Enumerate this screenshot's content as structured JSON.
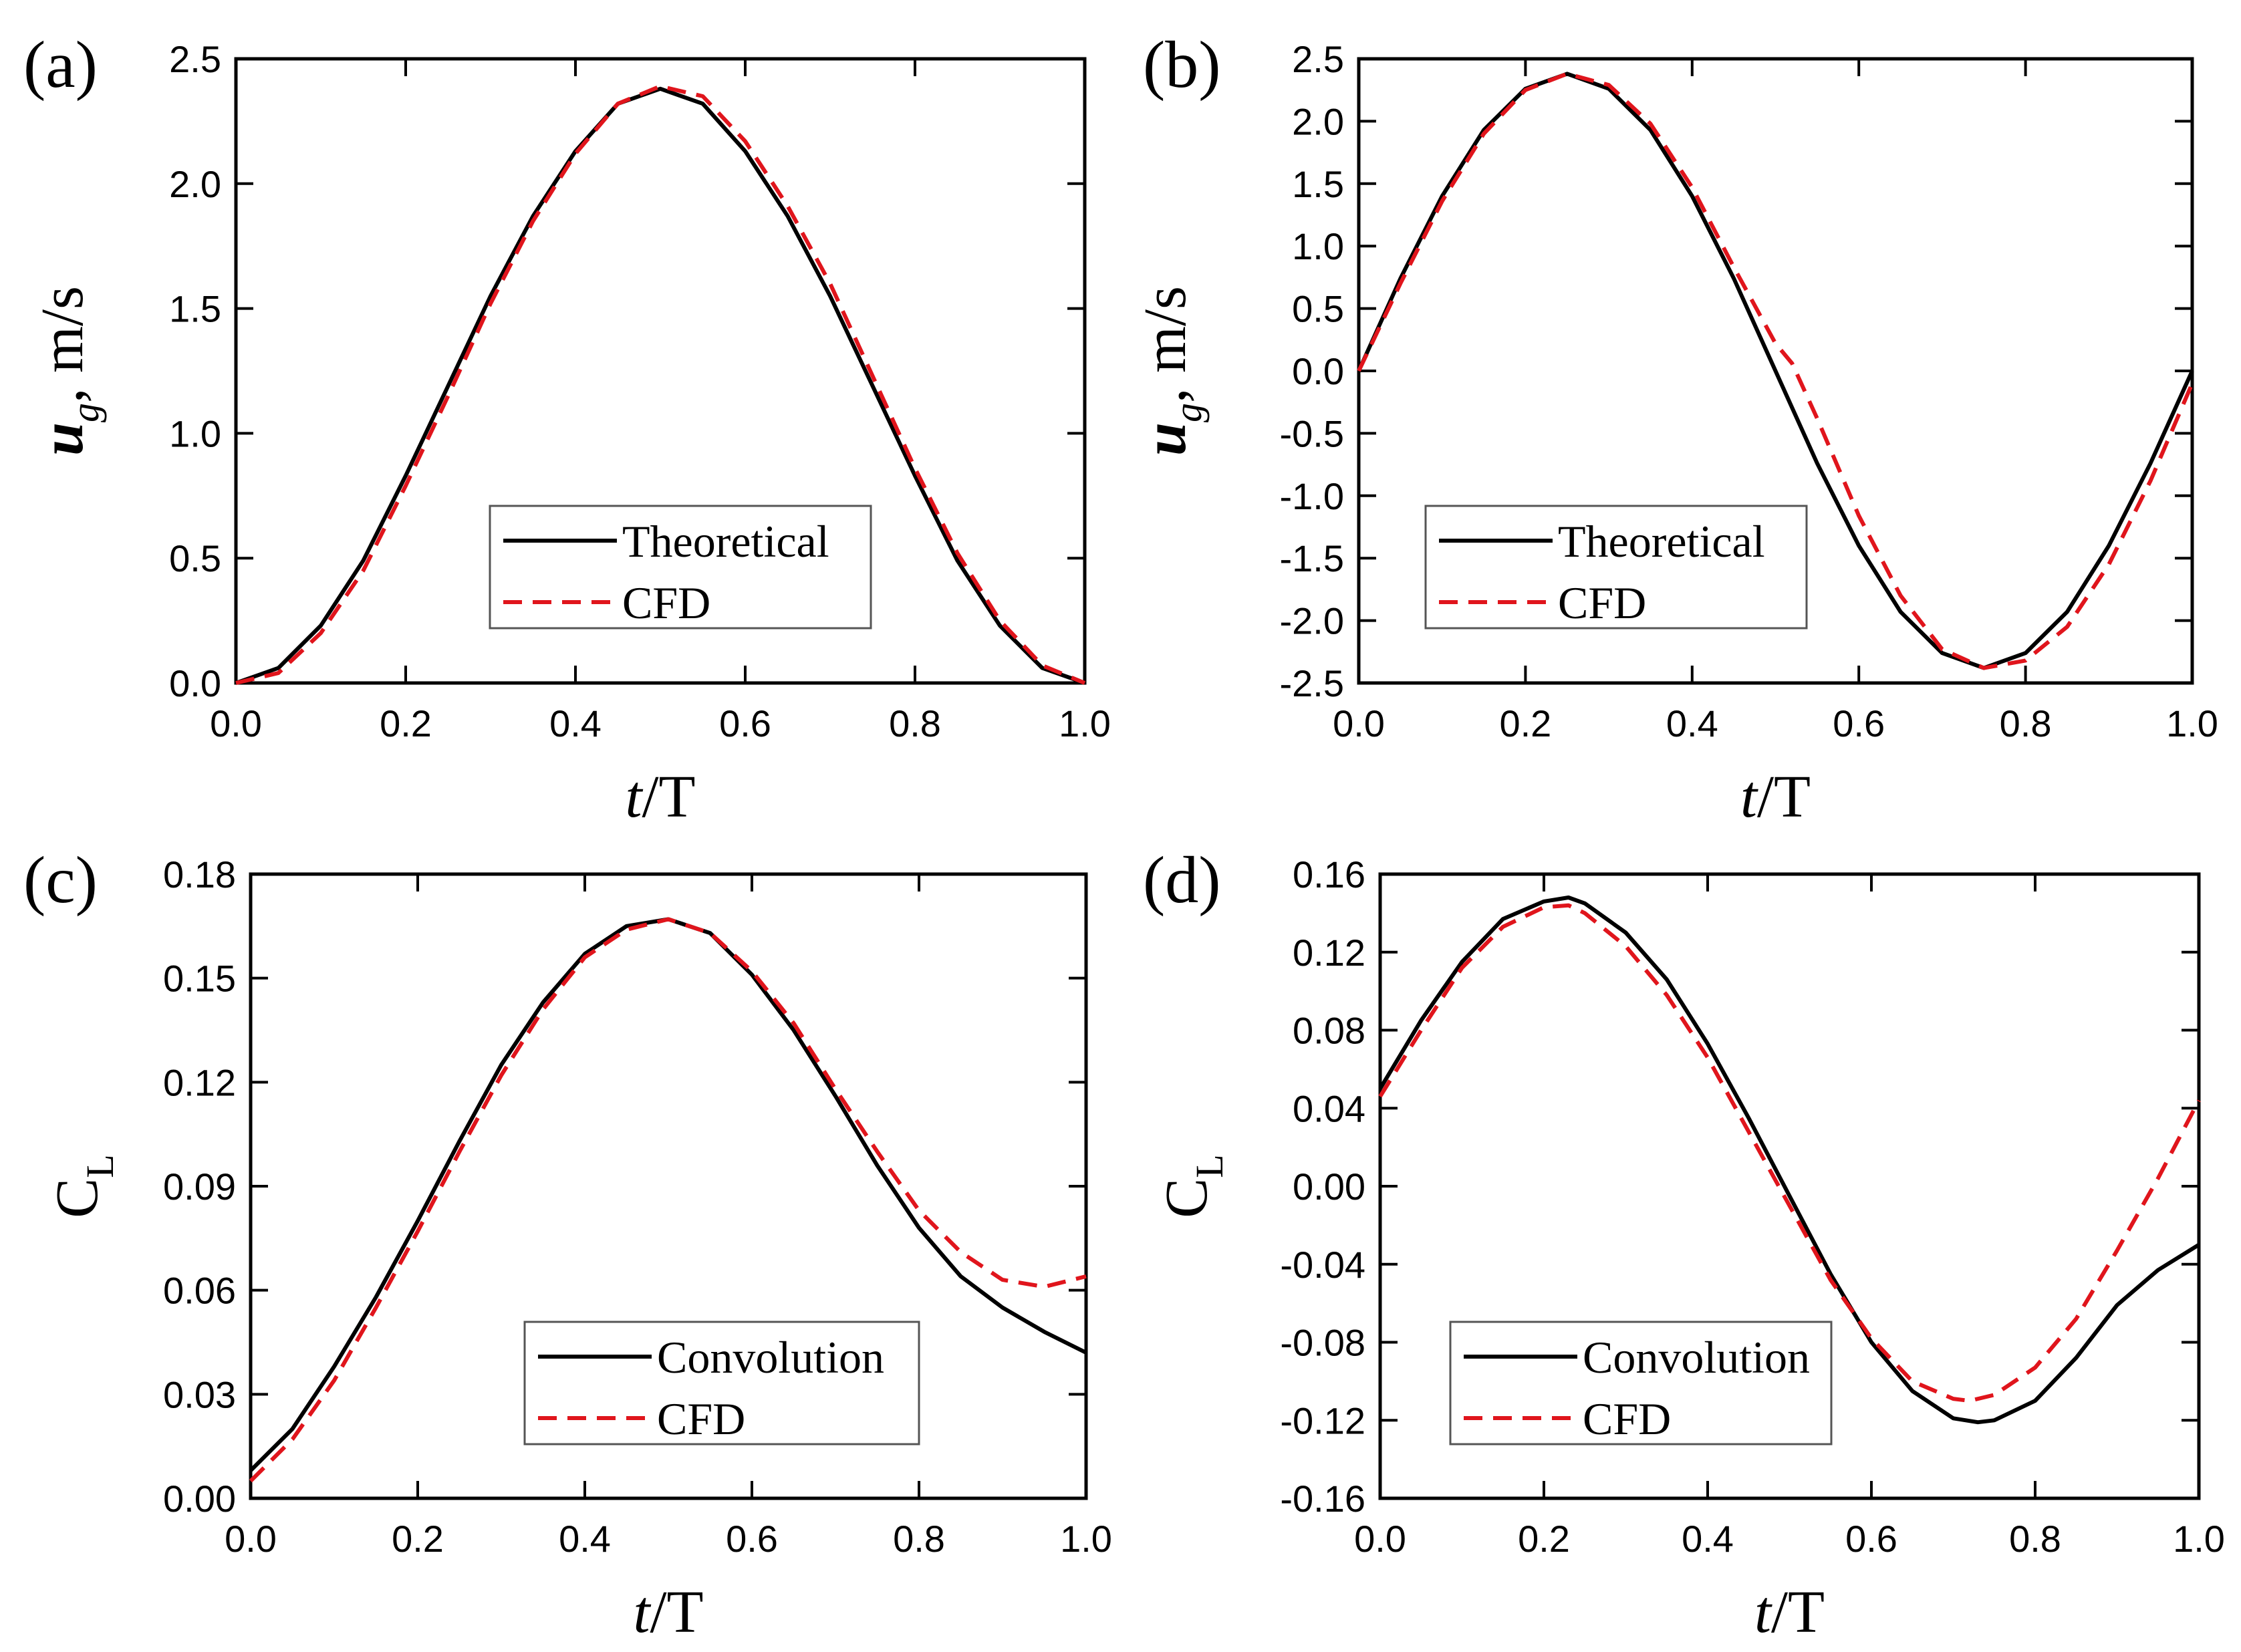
{
  "figure": {
    "background": "#ffffff",
    "axis_color": "#000000"
  },
  "chart_data": [
    {
      "panel": "(a)",
      "type": "line",
      "xlabel_italic": "t",
      "xlabel_rest": "/T",
      "ylabel_main": "u",
      "ylabel_sub": "g",
      "ylabel_rest": ", m/s",
      "xlim": [
        0,
        1.0
      ],
      "ylim": [
        0,
        2.5
      ],
      "xticks": [
        0,
        0.2,
        0.4,
        0.6,
        0.8,
        1.0
      ],
      "xtick_labels": [
        "0.0",
        "0.2",
        "0.4",
        "0.6",
        "0.8",
        "1.0"
      ],
      "yticks": [
        0,
        0.5,
        1.0,
        1.5,
        2.0,
        2.5
      ],
      "ytick_labels": [
        "0.0",
        "0.5",
        "1.0",
        "1.5",
        "2.0",
        "2.5"
      ],
      "legend_position": "lower-center",
      "series": [
        {
          "name": "Theoretical",
          "style": "solid",
          "color": "#000000",
          "x": [
            0,
            0.05,
            0.1,
            0.15,
            0.2,
            0.25,
            0.3,
            0.35,
            0.4,
            0.45,
            0.5,
            0.55,
            0.6,
            0.65,
            0.7,
            0.75,
            0.8,
            0.85,
            0.9,
            0.95,
            1.0
          ],
          "values": [
            0,
            0.06,
            0.23,
            0.49,
            0.83,
            1.19,
            1.55,
            1.87,
            2.13,
            2.32,
            2.38,
            2.32,
            2.13,
            1.87,
            1.55,
            1.19,
            0.83,
            0.49,
            0.23,
            0.06,
            0
          ]
        },
        {
          "name": "CFD",
          "style": "dashed",
          "color": "#e0151c",
          "x": [
            0,
            0.05,
            0.1,
            0.15,
            0.2,
            0.25,
            0.3,
            0.35,
            0.4,
            0.45,
            0.5,
            0.55,
            0.6,
            0.65,
            0.7,
            0.75,
            0.8,
            0.85,
            0.9,
            0.95,
            1.0
          ],
          "values": [
            0,
            0.04,
            0.2,
            0.45,
            0.79,
            1.15,
            1.52,
            1.85,
            2.12,
            2.32,
            2.39,
            2.35,
            2.17,
            1.91,
            1.6,
            1.23,
            0.86,
            0.52,
            0.25,
            0.07,
            0
          ]
        }
      ]
    },
    {
      "panel": "(b)",
      "type": "line",
      "xlabel_italic": "t",
      "xlabel_rest": "/T",
      "ylabel_main": "u",
      "ylabel_sub": "g",
      "ylabel_rest": ", m/s",
      "xlim": [
        0,
        1.0
      ],
      "ylim": [
        -2.5,
        2.5
      ],
      "xticks": [
        0,
        0.2,
        0.4,
        0.6,
        0.8,
        1.0
      ],
      "xtick_labels": [
        "0.0",
        "0.2",
        "0.4",
        "0.6",
        "0.8",
        "1.0"
      ],
      "yticks": [
        -2.5,
        -2.0,
        -1.5,
        -1.0,
        -0.5,
        0,
        0.5,
        1.0,
        1.5,
        2.0,
        2.5
      ],
      "ytick_labels": [
        "-2.5",
        "-2.0",
        "-1.5",
        "-1.0",
        "-0.5",
        "0.0",
        "0.5",
        "1.0",
        "1.5",
        "2.0",
        "2.5"
      ],
      "legend_position": "lower-center",
      "series": [
        {
          "name": "Theoretical",
          "style": "solid",
          "color": "#000000",
          "x": [
            0,
            0.05,
            0.1,
            0.15,
            0.2,
            0.25,
            0.3,
            0.35,
            0.4,
            0.45,
            0.5,
            0.55,
            0.6,
            0.65,
            0.7,
            0.75,
            0.8,
            0.85,
            0.9,
            0.95,
            1.0
          ],
          "values": [
            0,
            0.74,
            1.4,
            1.93,
            2.26,
            2.38,
            2.26,
            1.93,
            1.4,
            0.74,
            0,
            -0.74,
            -1.4,
            -1.93,
            -2.26,
            -2.38,
            -2.26,
            -1.93,
            -1.4,
            -0.74,
            0
          ]
        },
        {
          "name": "CFD",
          "style": "dashed",
          "color": "#e0151c",
          "x": [
            0,
            0.05,
            0.1,
            0.15,
            0.2,
            0.25,
            0.3,
            0.35,
            0.4,
            0.45,
            0.5,
            0.52,
            0.55,
            0.6,
            0.65,
            0.7,
            0.75,
            0.8,
            0.85,
            0.9,
            0.95,
            1.0
          ],
          "values": [
            0,
            0.7,
            1.36,
            1.9,
            2.25,
            2.38,
            2.29,
            1.98,
            1.47,
            0.83,
            0.22,
            0.06,
            -0.38,
            -1.16,
            -1.8,
            -2.23,
            -2.38,
            -2.32,
            -2.05,
            -1.55,
            -0.88,
            -0.1
          ]
        }
      ]
    },
    {
      "panel": "(c)",
      "type": "line",
      "xlabel_italic": "t",
      "xlabel_rest": "/T",
      "ylabel_main": "C",
      "ylabel_sub": "L",
      "ylabel_rest": "",
      "xlim": [
        0,
        1.0
      ],
      "ylim": [
        0,
        0.18
      ],
      "xticks": [
        0,
        0.2,
        0.4,
        0.6,
        0.8,
        1.0
      ],
      "xtick_labels": [
        "0.0",
        "0.2",
        "0.4",
        "0.6",
        "0.8",
        "1.0"
      ],
      "yticks": [
        0,
        0.03,
        0.06,
        0.09,
        0.12,
        0.15,
        0.18
      ],
      "ytick_labels": [
        "0.00",
        "0.03",
        "0.06",
        "0.09",
        "0.12",
        "0.15",
        "0.18"
      ],
      "legend_position": "lower-right",
      "series": [
        {
          "name": "Convolution",
          "style": "solid",
          "color": "#000000",
          "x": [
            0,
            0.05,
            0.1,
            0.15,
            0.2,
            0.25,
            0.3,
            0.35,
            0.4,
            0.45,
            0.5,
            0.55,
            0.6,
            0.65,
            0.7,
            0.75,
            0.8,
            0.85,
            0.9,
            0.95,
            1.0
          ],
          "values": [
            0.008,
            0.02,
            0.038,
            0.058,
            0.08,
            0.103,
            0.125,
            0.143,
            0.157,
            0.165,
            0.167,
            0.163,
            0.151,
            0.135,
            0.116,
            0.096,
            0.078,
            0.064,
            0.055,
            0.048,
            0.042
          ]
        },
        {
          "name": "CFD",
          "style": "dashed",
          "color": "#e0151c",
          "x": [
            0,
            0.05,
            0.1,
            0.15,
            0.2,
            0.25,
            0.3,
            0.35,
            0.4,
            0.45,
            0.5,
            0.55,
            0.6,
            0.65,
            0.7,
            0.75,
            0.8,
            0.85,
            0.9,
            0.95,
            1.0
          ],
          "values": [
            0.005,
            0.017,
            0.034,
            0.055,
            0.077,
            0.1,
            0.122,
            0.141,
            0.156,
            0.164,
            0.167,
            0.163,
            0.152,
            0.137,
            0.118,
            0.1,
            0.083,
            0.071,
            0.063,
            0.061,
            0.064
          ]
        }
      ]
    },
    {
      "panel": "(d)",
      "type": "line",
      "xlabel_italic": "t",
      "xlabel_rest": "/T",
      "ylabel_main": "C",
      "ylabel_sub": "L",
      "ylabel_rest": "",
      "xlim": [
        0,
        1.0
      ],
      "ylim": [
        -0.16,
        0.16
      ],
      "xticks": [
        0,
        0.2,
        0.4,
        0.6,
        0.8,
        1.0
      ],
      "xtick_labels": [
        "0.0",
        "0.2",
        "0.4",
        "0.6",
        "0.8",
        "1.0"
      ],
      "yticks": [
        -0.16,
        -0.12,
        -0.08,
        -0.04,
        0,
        0.04,
        0.08,
        0.12,
        0.16
      ],
      "ytick_labels": [
        "-0.16",
        "-0.12",
        "-0.08",
        "-0.04",
        "0.00",
        "0.04",
        "0.08",
        "0.12",
        "0.16"
      ],
      "legend_position": "lower-left",
      "series": [
        {
          "name": "Convolution",
          "style": "solid",
          "color": "#000000",
          "x": [
            0,
            0.05,
            0.1,
            0.15,
            0.2,
            0.23,
            0.25,
            0.3,
            0.35,
            0.4,
            0.45,
            0.5,
            0.55,
            0.6,
            0.65,
            0.7,
            0.73,
            0.75,
            0.8,
            0.85,
            0.9,
            0.95,
            1.0
          ],
          "values": [
            0.05,
            0.085,
            0.115,
            0.137,
            0.146,
            0.148,
            0.145,
            0.13,
            0.106,
            0.073,
            0.035,
            -0.005,
            -0.045,
            -0.08,
            -0.105,
            -0.119,
            -0.121,
            -0.12,
            -0.11,
            -0.088,
            -0.061,
            -0.043,
            -0.03
          ]
        },
        {
          "name": "CFD",
          "style": "dashed",
          "color": "#e0151c",
          "x": [
            0,
            0.05,
            0.1,
            0.15,
            0.2,
            0.23,
            0.25,
            0.3,
            0.35,
            0.4,
            0.45,
            0.5,
            0.55,
            0.6,
            0.65,
            0.7,
            0.72,
            0.75,
            0.8,
            0.85,
            0.9,
            0.95,
            1.0
          ],
          "values": [
            0.046,
            0.08,
            0.112,
            0.133,
            0.143,
            0.144,
            0.14,
            0.123,
            0.098,
            0.066,
            0.028,
            -0.01,
            -0.048,
            -0.078,
            -0.1,
            -0.109,
            -0.11,
            -0.107,
            -0.093,
            -0.068,
            -0.033,
            0.004,
            0.044
          ]
        }
      ]
    }
  ]
}
